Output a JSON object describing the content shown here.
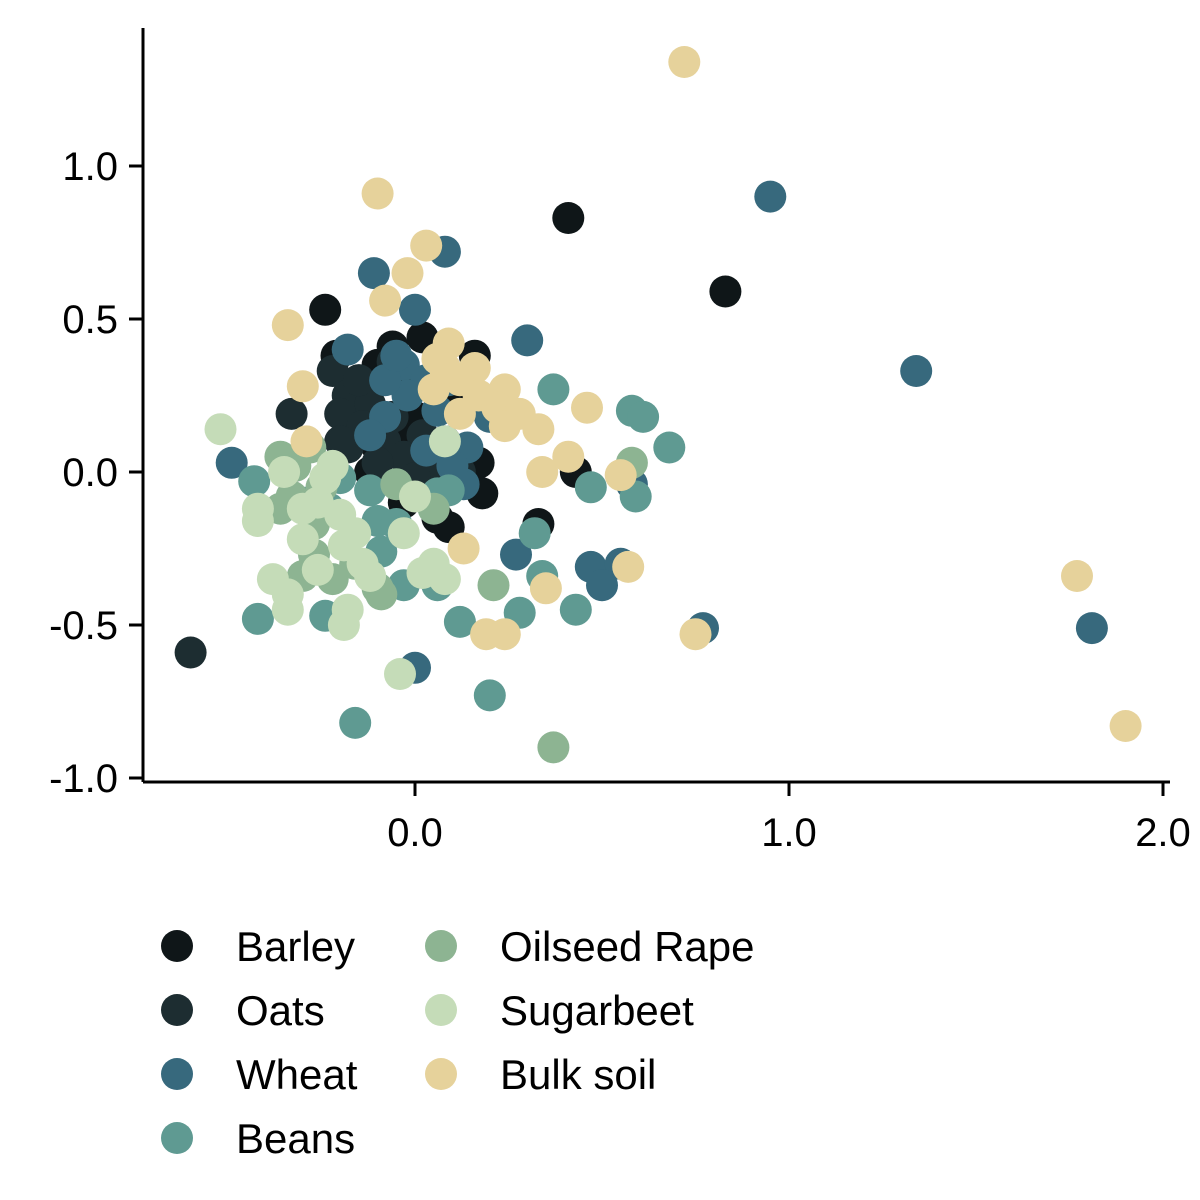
{
  "chart_data": {
    "type": "scatter",
    "title": "",
    "xlabel": "",
    "ylabel": "",
    "xlim": [
      -0.73,
      2.02
    ],
    "ylim": [
      -1.02,
      1.45
    ],
    "x_ticks": [
      {
        "value": 0.0,
        "label": "0.0"
      },
      {
        "value": 1.0,
        "label": "1.0"
      },
      {
        "value": 2.0,
        "label": "2.0"
      }
    ],
    "y_ticks": [
      {
        "value": 1.0,
        "label": "1.0"
      },
      {
        "value": 0.5,
        "label": "0.5"
      },
      {
        "value": 0.0,
        "label": "0.0"
      },
      {
        "value": -0.5,
        "label": "-0.5"
      },
      {
        "value": -1.0,
        "label": "-1.0"
      }
    ],
    "grid": false,
    "legend_position": "bottom",
    "series": [
      {
        "name": "Barley",
        "color": "#0f1618",
        "points": [
          [
            0.41,
            0.83
          ],
          [
            0.83,
            0.59
          ],
          [
            -0.24,
            0.53
          ],
          [
            0.02,
            0.44
          ],
          [
            -0.06,
            0.41
          ],
          [
            0.16,
            0.38
          ],
          [
            -0.21,
            0.38
          ],
          [
            -0.1,
            0.35
          ],
          [
            0.06,
            0.33
          ],
          [
            -0.15,
            0.3
          ],
          [
            -0.02,
            0.28
          ],
          [
            0.1,
            0.22
          ],
          [
            0.0,
            0.18
          ],
          [
            -0.05,
            0.12
          ],
          [
            0.08,
            0.1
          ],
          [
            -0.1,
            0.08
          ],
          [
            0.03,
            0.06
          ],
          [
            0.17,
            0.03
          ],
          [
            0.43,
            0.0
          ],
          [
            0.12,
            -0.02
          ],
          [
            0.18,
            -0.07
          ],
          [
            -0.03,
            -0.1
          ],
          [
            0.06,
            -0.15
          ],
          [
            0.09,
            -0.18
          ],
          [
            0.33,
            -0.17
          ],
          [
            -0.12,
            0.0
          ],
          [
            0.14,
            0.05
          ],
          [
            -0.03,
            0.33
          ]
        ]
      },
      {
        "name": "Oats",
        "color": "#1d2d31",
        "points": [
          [
            -0.6,
            -0.59
          ],
          [
            -0.33,
            0.19
          ],
          [
            -0.22,
            0.33
          ],
          [
            -0.18,
            0.25
          ],
          [
            -0.12,
            0.22
          ],
          [
            -0.2,
            0.19
          ],
          [
            -0.14,
            0.15
          ],
          [
            -0.06,
            0.18
          ],
          [
            -0.08,
            0.1
          ],
          [
            0.02,
            0.12
          ],
          [
            -0.18,
            0.08
          ],
          [
            -0.03,
            0.05
          ],
          [
            0.06,
            0.02
          ],
          [
            -0.1,
            0.03
          ],
          [
            0.12,
            0.0
          ],
          [
            0.0,
            -0.02
          ],
          [
            -0.15,
            0.3
          ],
          [
            -0.2,
            0.1
          ],
          [
            0.04,
            0.28
          ],
          [
            -0.06,
            0.36
          ]
        ]
      },
      {
        "name": "Wheat",
        "color": "#37697d",
        "points": [
          [
            0.95,
            0.9
          ],
          [
            1.34,
            0.33
          ],
          [
            1.81,
            -0.51
          ],
          [
            0.08,
            0.72
          ],
          [
            -0.11,
            0.65
          ],
          [
            0.0,
            0.53
          ],
          [
            -0.18,
            0.4
          ],
          [
            0.3,
            0.43
          ],
          [
            -0.03,
            0.35
          ],
          [
            0.03,
            0.3
          ],
          [
            -0.02,
            0.25
          ],
          [
            0.09,
            0.3
          ],
          [
            0.06,
            0.2
          ],
          [
            -0.08,
            0.18
          ],
          [
            0.2,
            0.18
          ],
          [
            0.14,
            0.08
          ],
          [
            0.03,
            0.07
          ],
          [
            -0.49,
            0.03
          ],
          [
            -0.12,
            0.12
          ],
          [
            0.13,
            -0.04
          ],
          [
            0.58,
            -0.04
          ],
          [
            0.27,
            -0.27
          ],
          [
            0.47,
            -0.31
          ],
          [
            0.55,
            -0.3
          ],
          [
            0.5,
            -0.37
          ],
          [
            0.77,
            -0.51
          ],
          [
            0.0,
            -0.64
          ],
          [
            -0.08,
            0.3
          ],
          [
            0.1,
            0.02
          ],
          [
            -0.05,
            0.38
          ]
        ]
      },
      {
        "name": "Beans",
        "color": "#5f9a92",
        "points": [
          [
            0.37,
            0.27
          ],
          [
            0.58,
            0.2
          ],
          [
            0.61,
            0.18
          ],
          [
            0.68,
            0.08
          ],
          [
            0.47,
            -0.05
          ],
          [
            0.59,
            -0.08
          ],
          [
            -0.43,
            -0.03
          ],
          [
            -0.3,
            -0.1
          ],
          [
            -0.12,
            -0.06
          ],
          [
            -0.09,
            -0.26
          ],
          [
            0.06,
            -0.07
          ],
          [
            -0.23,
            -0.12
          ],
          [
            -0.1,
            -0.16
          ],
          [
            0.32,
            -0.2
          ],
          [
            -0.03,
            -0.37
          ],
          [
            0.06,
            -0.37
          ],
          [
            0.34,
            -0.34
          ],
          [
            -0.42,
            -0.48
          ],
          [
            -0.24,
            -0.47
          ],
          [
            0.12,
            -0.49
          ],
          [
            0.28,
            -0.46
          ],
          [
            0.43,
            -0.45
          ],
          [
            0.2,
            -0.73
          ],
          [
            -0.16,
            -0.82
          ],
          [
            -0.05,
            -0.17
          ],
          [
            -0.35,
            0.03
          ],
          [
            0.09,
            -0.06
          ],
          [
            -0.2,
            -0.02
          ]
        ]
      },
      {
        "name": "Oilseed Rape",
        "color": "#8db492",
        "points": [
          [
            -0.28,
            0.08
          ],
          [
            -0.32,
            0.02
          ],
          [
            -0.36,
            0.05
          ],
          [
            -0.25,
            -0.05
          ],
          [
            -0.3,
            -0.34
          ],
          [
            -0.27,
            -0.27
          ],
          [
            -0.22,
            -0.35
          ],
          [
            -0.16,
            -0.3
          ],
          [
            -0.1,
            -0.38
          ],
          [
            -0.05,
            -0.04
          ],
          [
            0.05,
            -0.12
          ],
          [
            0.21,
            -0.37
          ],
          [
            0.37,
            -0.9
          ],
          [
            0.58,
            0.03
          ],
          [
            -0.33,
            -0.08
          ],
          [
            -0.27,
            -0.17
          ],
          [
            -0.09,
            -0.4
          ],
          [
            -0.36,
            -0.12
          ]
        ]
      },
      {
        "name": "Sugarbeet",
        "color": "#c5dcb8",
        "points": [
          [
            -0.52,
            0.14
          ],
          [
            -0.42,
            -0.12
          ],
          [
            -0.42,
            -0.16
          ],
          [
            -0.38,
            -0.35
          ],
          [
            -0.34,
            -0.4
          ],
          [
            -0.34,
            -0.45
          ],
          [
            -0.3,
            -0.12
          ],
          [
            -0.26,
            -0.32
          ],
          [
            -0.26,
            -0.1
          ],
          [
            -0.2,
            -0.14
          ],
          [
            -0.19,
            -0.24
          ],
          [
            -0.19,
            -0.5
          ],
          [
            -0.18,
            -0.45
          ],
          [
            -0.14,
            -0.3
          ],
          [
            -0.12,
            -0.34
          ],
          [
            -0.04,
            -0.66
          ],
          [
            -0.03,
            -0.2
          ],
          [
            0.02,
            -0.33
          ],
          [
            0.08,
            -0.35
          ],
          [
            0.08,
            0.1
          ],
          [
            0.0,
            -0.08
          ],
          [
            -0.22,
            0.02
          ],
          [
            -0.35,
            0.0
          ],
          [
            -0.16,
            -0.2
          ],
          [
            0.05,
            -0.3
          ],
          [
            -0.3,
            -0.22
          ],
          [
            -0.24,
            -0.02
          ]
        ]
      },
      {
        "name": "Bulk soil",
        "color": "#e6d29b",
        "points": [
          [
            0.72,
            1.34
          ],
          [
            -0.1,
            0.91
          ],
          [
            0.03,
            0.74
          ],
          [
            -0.02,
            0.65
          ],
          [
            -0.08,
            0.56
          ],
          [
            -0.34,
            0.48
          ],
          [
            -0.3,
            0.28
          ],
          [
            0.09,
            0.42
          ],
          [
            0.06,
            0.37
          ],
          [
            0.16,
            0.34
          ],
          [
            0.12,
            0.3
          ],
          [
            0.05,
            0.27
          ],
          [
            0.24,
            0.27
          ],
          [
            0.17,
            0.25
          ],
          [
            0.22,
            0.21
          ],
          [
            0.28,
            0.19
          ],
          [
            0.46,
            0.21
          ],
          [
            0.12,
            0.19
          ],
          [
            0.24,
            0.15
          ],
          [
            0.33,
            0.14
          ],
          [
            0.41,
            0.05
          ],
          [
            0.34,
            0.0
          ],
          [
            0.55,
            -0.01
          ],
          [
            0.13,
            -0.25
          ],
          [
            0.57,
            -0.31
          ],
          [
            0.35,
            -0.38
          ],
          [
            0.19,
            -0.53
          ],
          [
            0.24,
            -0.53
          ],
          [
            0.75,
            -0.53
          ],
          [
            1.77,
            -0.34
          ],
          [
            1.9,
            -0.83
          ],
          [
            -0.29,
            0.1
          ],
          [
            0.08,
            0.34
          ]
        ]
      }
    ]
  }
}
